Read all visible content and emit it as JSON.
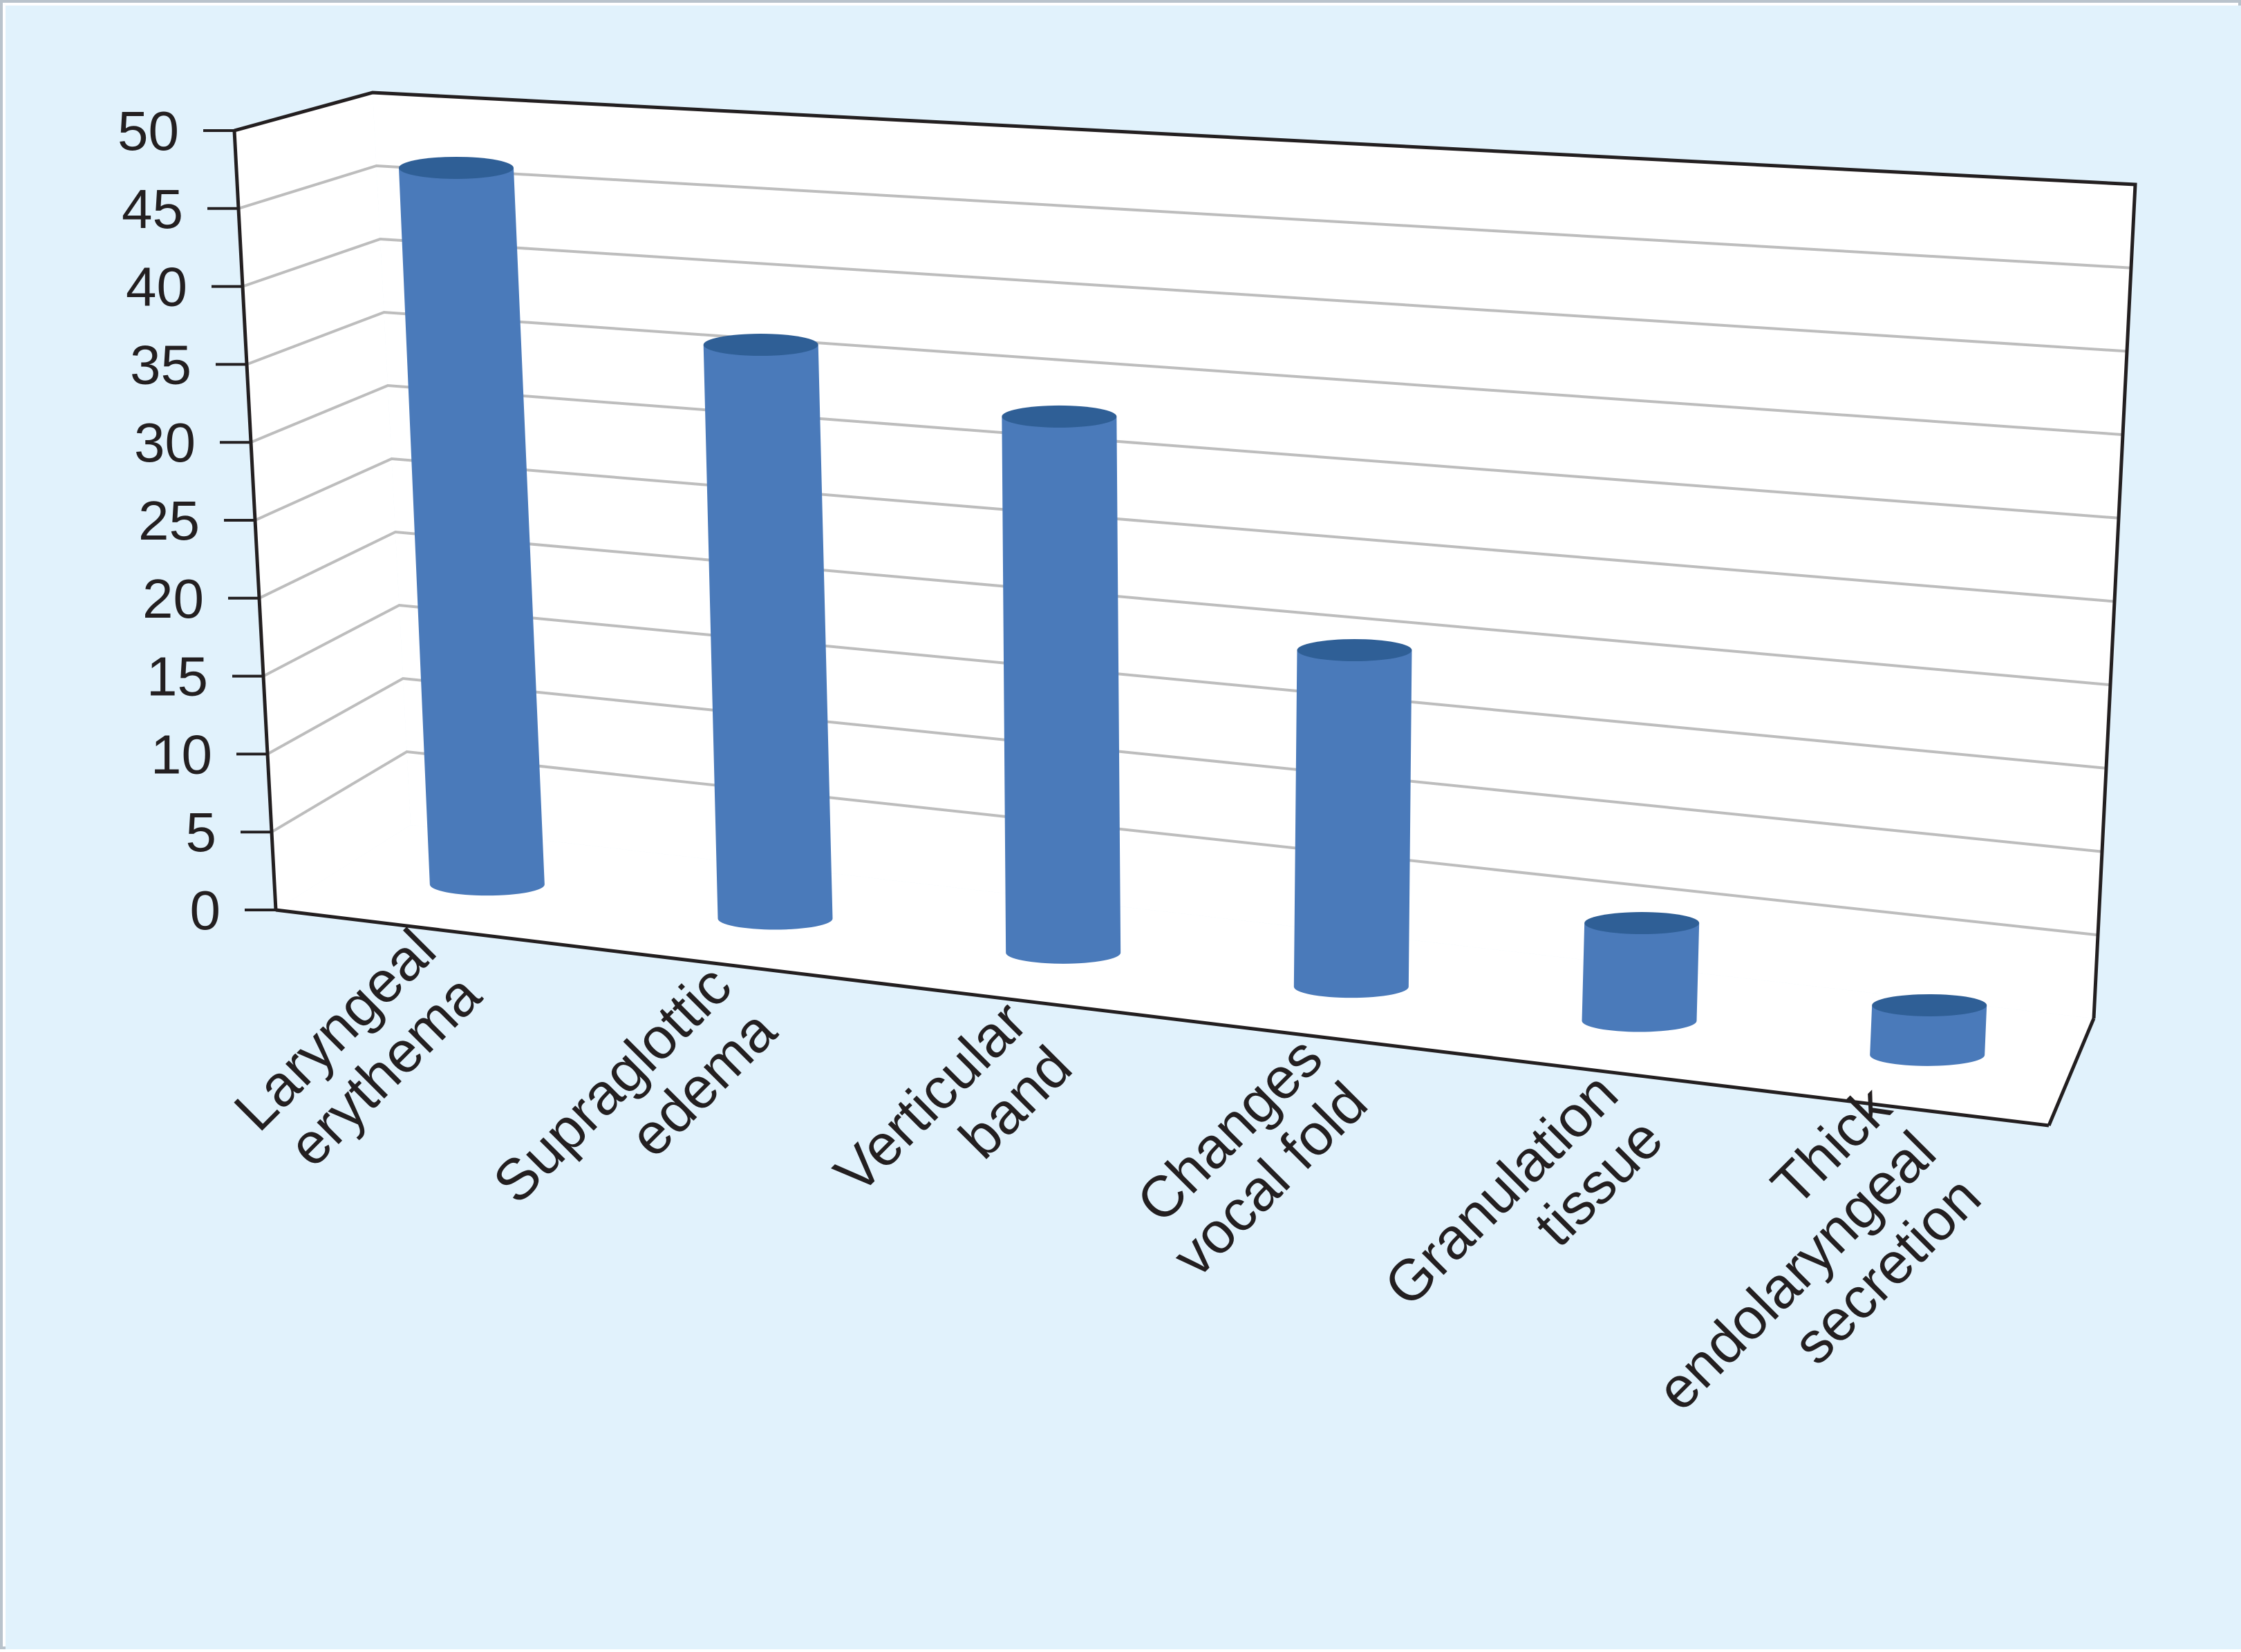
{
  "chart_data": {
    "type": "bar",
    "style": "3d-cylinder",
    "categories": [
      [
        "Laryngeal",
        "erythema"
      ],
      [
        "Supraglottic",
        "edema"
      ],
      [
        "Verticular",
        "band"
      ],
      [
        "Changes",
        "vocal fold"
      ],
      [
        "Granulation",
        "tissue"
      ],
      [
        "Thick",
        "endolaryngeal",
        "secretion"
      ]
    ],
    "values": [
      47,
      37,
      34,
      21,
      6,
      3
    ],
    "title": "",
    "xlabel": "",
    "ylabel": "",
    "ylim": [
      0,
      50
    ],
    "yticks": [
      "0",
      "5",
      "10",
      "15",
      "20",
      "25",
      "30",
      "35",
      "40",
      "45",
      "50"
    ],
    "grid": true,
    "legend": "none",
    "colors": {
      "background": "#e1f2fc",
      "wall": "#ffffff",
      "grid": "#bdbdbd",
      "axis": "#231f20",
      "bar": "#4a7aba",
      "bar_top": "#2f5f96",
      "text": "#231f20"
    }
  }
}
